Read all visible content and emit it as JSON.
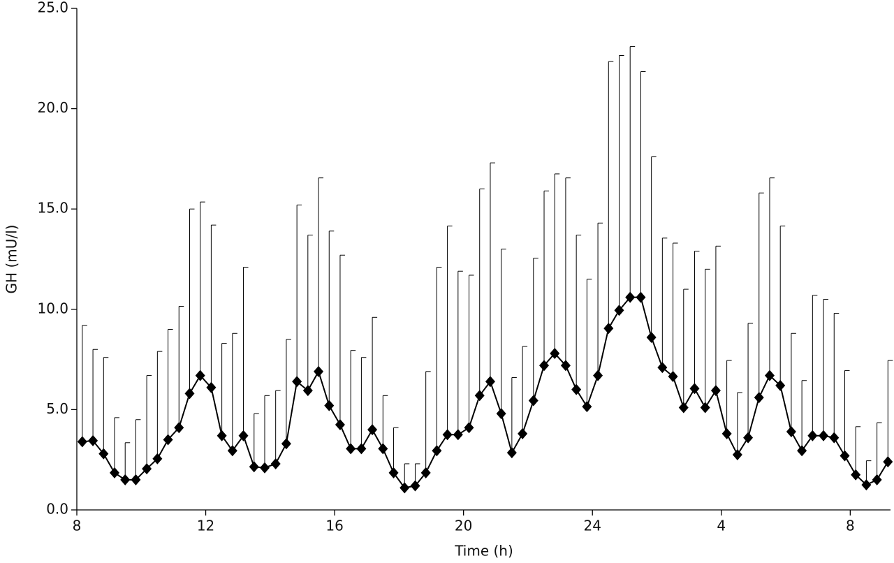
{
  "chart_data": {
    "type": "line",
    "x_label": "Time (h)",
    "y_label": "GH (mU/l)",
    "xlim": [
      8,
      33.25
    ],
    "ylim": [
      0,
      25
    ],
    "xticks": [
      8,
      12,
      16,
      20,
      24,
      {
        "value": 28,
        "label": "4"
      },
      {
        "value": 32,
        "label": "8"
      }
    ],
    "yticks": [
      {
        "value": 0,
        "label": "0.0"
      },
      {
        "value": 5,
        "label": "5.0"
      },
      {
        "value": 10,
        "label": "10.0"
      },
      {
        "value": 15,
        "label": "15.0"
      },
      {
        "value": 20,
        "label": "20.0"
      },
      {
        "value": 25,
        "label": "25.0"
      }
    ],
    "x": [
      8.17,
      8.5,
      8.83,
      9.17,
      9.5,
      9.83,
      10.17,
      10.5,
      10.83,
      11.17,
      11.5,
      11.83,
      12.17,
      12.5,
      12.83,
      13.17,
      13.5,
      13.83,
      14.17,
      14.5,
      14.83,
      15.17,
      15.5,
      15.83,
      16.17,
      16.5,
      16.83,
      17.17,
      17.5,
      17.83,
      18.17,
      18.5,
      18.83,
      19.17,
      19.5,
      19.83,
      20.17,
      20.5,
      20.83,
      21.17,
      21.5,
      21.83,
      22.17,
      22.5,
      22.83,
      23.17,
      23.5,
      23.83,
      24.17,
      24.5,
      24.83,
      25.17,
      25.5,
      25.83,
      26.17,
      26.5,
      26.83,
      27.17,
      27.5,
      27.83,
      28.17,
      28.5,
      28.83,
      29.17,
      29.5,
      29.83,
      30.17,
      30.5,
      30.83,
      31.17,
      31.5,
      31.83,
      32.17,
      32.5,
      32.83,
      33.17
    ],
    "series": [
      {
        "color": "#000000",
        "values": [
          3.4,
          3.45,
          2.8,
          1.85,
          1.5,
          1.5,
          2.05,
          2.55,
          3.5,
          4.1,
          5.8,
          6.7,
          6.1,
          3.7,
          2.95,
          3.7,
          2.15,
          2.1,
          2.3,
          3.3,
          6.4,
          5.95,
          6.9,
          5.2,
          4.25,
          3.05,
          3.05,
          4.0,
          3.05,
          1.85,
          1.1,
          1.2,
          1.85,
          2.95,
          3.75,
          3.75,
          4.1,
          5.7,
          6.4,
          4.8,
          2.85,
          3.8,
          5.45,
          7.2,
          7.8,
          7.2,
          6.0,
          5.15,
          6.7,
          9.05,
          9.95,
          10.6,
          10.6,
          8.6,
          7.1,
          6.65,
          5.1,
          6.05,
          5.1,
          5.95,
          3.8,
          2.75,
          3.6,
          5.6,
          6.7,
          6.2,
          3.9,
          2.95,
          3.7,
          3.7,
          3.6,
          2.7,
          1.75,
          1.25,
          1.5,
          2.4
        ],
        "upper": [
          9.2,
          8.0,
          7.6,
          4.6,
          3.35,
          4.5,
          6.7,
          7.9,
          9.0,
          10.15,
          15.0,
          15.35,
          14.2,
          8.3,
          8.8,
          12.1,
          4.8,
          5.7,
          5.95,
          8.5,
          15.2,
          13.7,
          16.55,
          13.9,
          12.7,
          7.95,
          7.6,
          9.6,
          5.7,
          4.1,
          2.3,
          2.3,
          6.9,
          12.1,
          14.15,
          11.9,
          11.7,
          16.0,
          17.3,
          13.0,
          6.6,
          8.15,
          12.55,
          15.9,
          16.75,
          16.55,
          13.7,
          11.5,
          14.3,
          22.35,
          22.65,
          23.1,
          21.85,
          17.6,
          13.55,
          13.3,
          11.0,
          12.9,
          12.0,
          13.15,
          7.45,
          5.85,
          9.3,
          15.8,
          16.55,
          14.15,
          8.8,
          6.45,
          10.7,
          10.5,
          9.8,
          6.95,
          4.15,
          2.45,
          4.35,
          7.45
        ]
      }
    ]
  }
}
